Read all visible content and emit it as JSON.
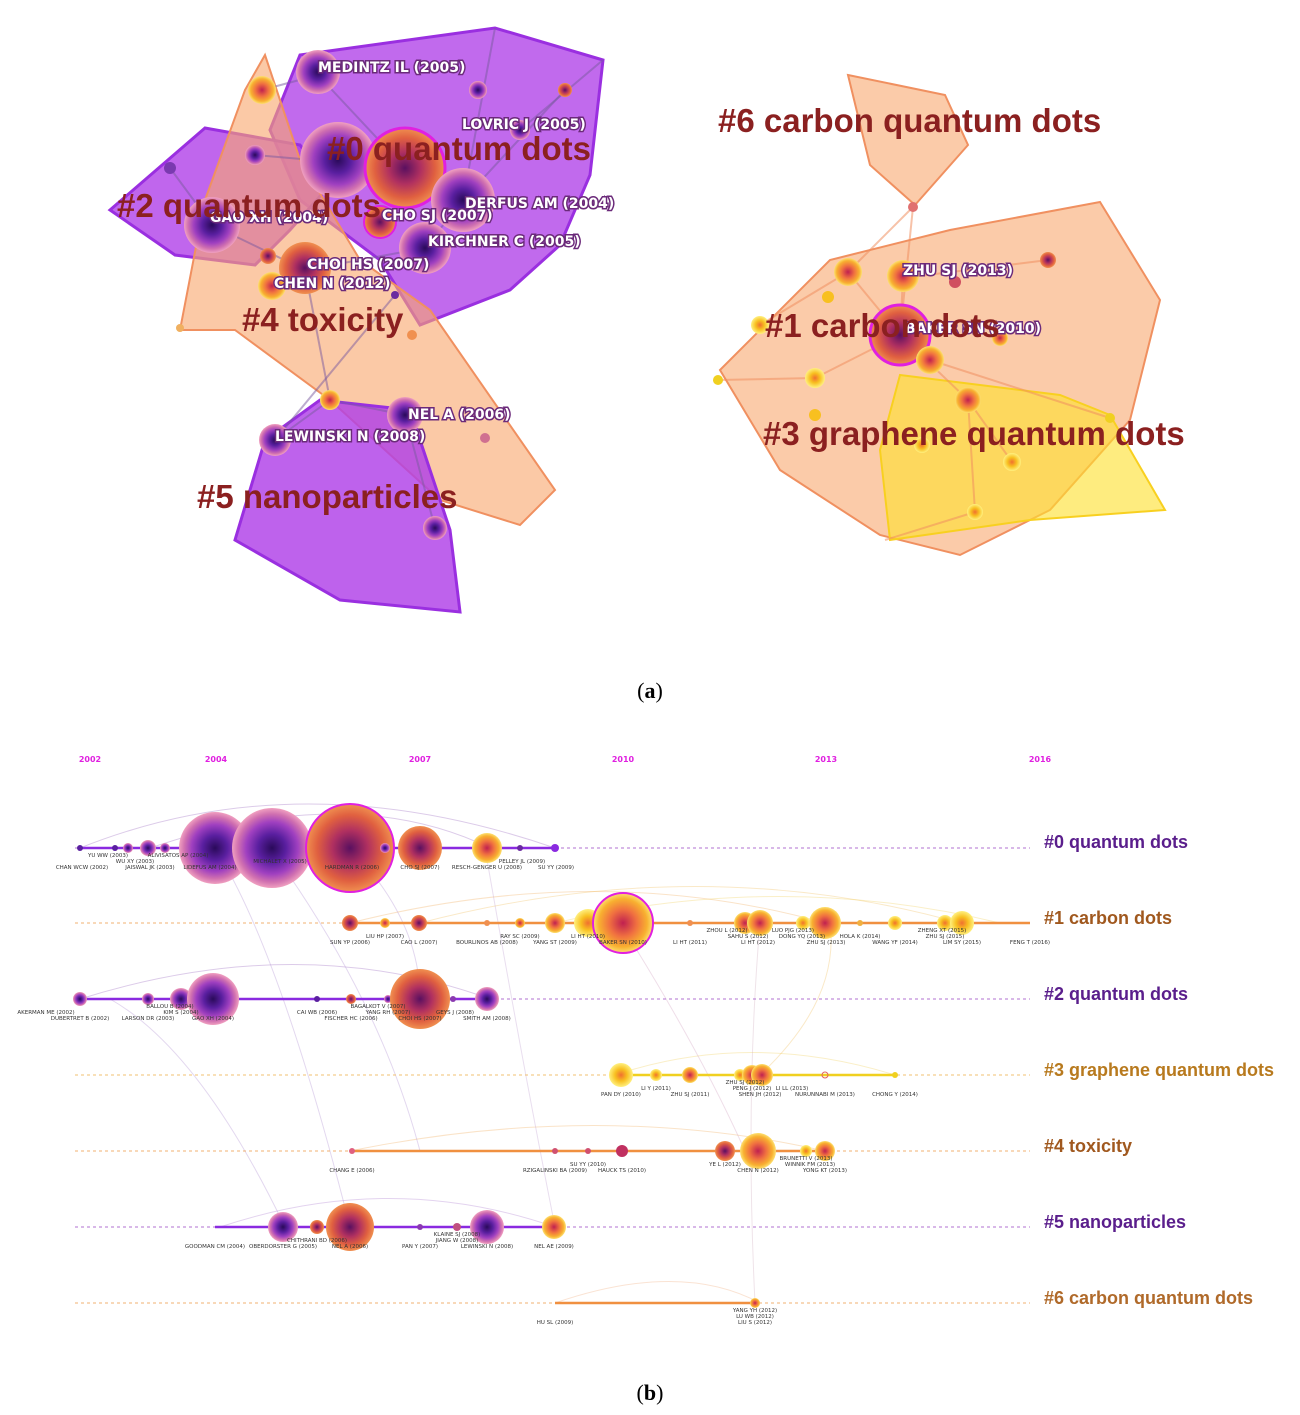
{
  "panel_a": {
    "caption_open": "(",
    "caption_letter": "a",
    "caption_close": ")",
    "clusters": [
      {
        "id": "c0",
        "label": "#0 quantum dots"
      },
      {
        "id": "c1",
        "label": "#1 carbon dots"
      },
      {
        "id": "c2",
        "label": "#2 quantum dots"
      },
      {
        "id": "c3",
        "label": "#3 graphene quantum dots"
      },
      {
        "id": "c4",
        "label": "#4 toxicity"
      },
      {
        "id": "c5",
        "label": "#5 nanoparticles"
      },
      {
        "id": "c6",
        "label": "#6 carbon quantum dots"
      }
    ],
    "node_labels": [
      "MEDINTZ IL (2005)",
      "LOVRIC J (2005)",
      "DERFUS AM (2004)",
      "KIRCHNER C (2005)",
      "CHO SJ (2007)",
      "GAO XH (2004)",
      "CHOI HS (2007)",
      "CHEN N (2012)",
      "NEL A (2006)",
      "LEWINSKI N (2008)",
      "ZHU SJ (2013)",
      "BAKER SN (2010)"
    ]
  },
  "panel_b": {
    "caption_open": "(",
    "caption_letter": "b",
    "caption_close": ")",
    "years": [
      "2002",
      "2004",
      "2007",
      "2010",
      "2013",
      "2016"
    ],
    "clusters": [
      {
        "label": "#0 quantum dots",
        "color": "#5a1e8c"
      },
      {
        "label": "#1 carbon dots",
        "color": "#a0581e"
      },
      {
        "label": "#2 quantum dots",
        "color": "#5a1e8c"
      },
      {
        "label": "#3 graphene quantum dots",
        "color": "#b87a1e"
      },
      {
        "label": "#4 toxicity",
        "color": "#a0581e"
      },
      {
        "label": "#5 nanoparticles",
        "color": "#5a1e8c"
      },
      {
        "label": "#6 carbon quantum dots",
        "color": "#b06a2a"
      }
    ],
    "row_labels": [
      [
        "CHAN WCW (2002)",
        "YU WW (2003)",
        "WU XY (2003)",
        "JAISWAL JK (2003)",
        "ALIVISATOS AP (2004)",
        "LIDEFUS AM (2004)",
        "MICHALET X (2005)",
        "HARDMAN R (2006)",
        "CHO SJ (2007)",
        "RESCH-GENGER U (2008)",
        "PELLEY JL (2009)",
        "SU YY (2009)"
      ],
      [
        "SUN YP (2006)",
        "LIU HP (2007)",
        "CAO L (2007)",
        "BOURLINOS AB (2008)",
        "RAY SC (2009)",
        "YANG ST (2009)",
        "LI HT (2010)",
        "BAKER SN (2010)",
        "LI HT (2011)",
        "ZHOU L (2012)",
        "SAHU S (2012)",
        "LI HT (2012)",
        "LUO PJG (2013)",
        "DONG YQ (2013)",
        "ZHU SJ (2013)",
        "HOLA K (2014)",
        "WANG YF (2014)",
        "ZHENG XT (2015)",
        "ZHU SJ (2015)",
        "LIM SY (2015)",
        "FENG T (2016)"
      ],
      [
        "AKERMAN ME (2002)",
        "DUBERTRET B (2002)",
        "LARSON DR (2003)",
        "BALLOU B (2004)",
        "KIM S (2004)",
        "GAO XH (2004)",
        "CAI WB (2006)",
        "FISCHER HC (2006)",
        "BAGALKOT V (2007)",
        "YANG RH (2007)",
        "CHOI HS (2007)",
        "GEYS J (2008)",
        "SMITH AM (2008)"
      ],
      [
        "PAN DY (2010)",
        "LI Y (2011)",
        "ZHU SJ (2011)",
        "ZHU SJ (2012)",
        "PENG J (2012)",
        "SHEN JH (2012)",
        "LI LL (2013)",
        "NURUNNABI M (2013)",
        "CHONG Y (2014)"
      ],
      [
        "CHANG E (2006)",
        "SU YY (2010)",
        "RZIGALINSKI BA (2009)",
        "HAUCK TS (2010)",
        "YE L (2012)",
        "CHEN N (2012)",
        "BRUNETTI V (2013)",
        "WINNIK FM (2013)",
        "YONG KT (2013)"
      ],
      [
        "GOODMAN CM (2004)",
        "OBERDORSTER G (2005)",
        "CHITHRANI BD (2006)",
        "NEL A (2006)",
        "KLAINE SJ (2008)",
        "PAN Y (2007)",
        "JIANG W (2008)",
        "LEWINSKI N (2008)",
        "NEL AE (2009)"
      ],
      [
        "HU SL (2009)",
        "YANG YH (2012)",
        "LU WB (2012)",
        "LIU S (2012)"
      ]
    ]
  }
}
